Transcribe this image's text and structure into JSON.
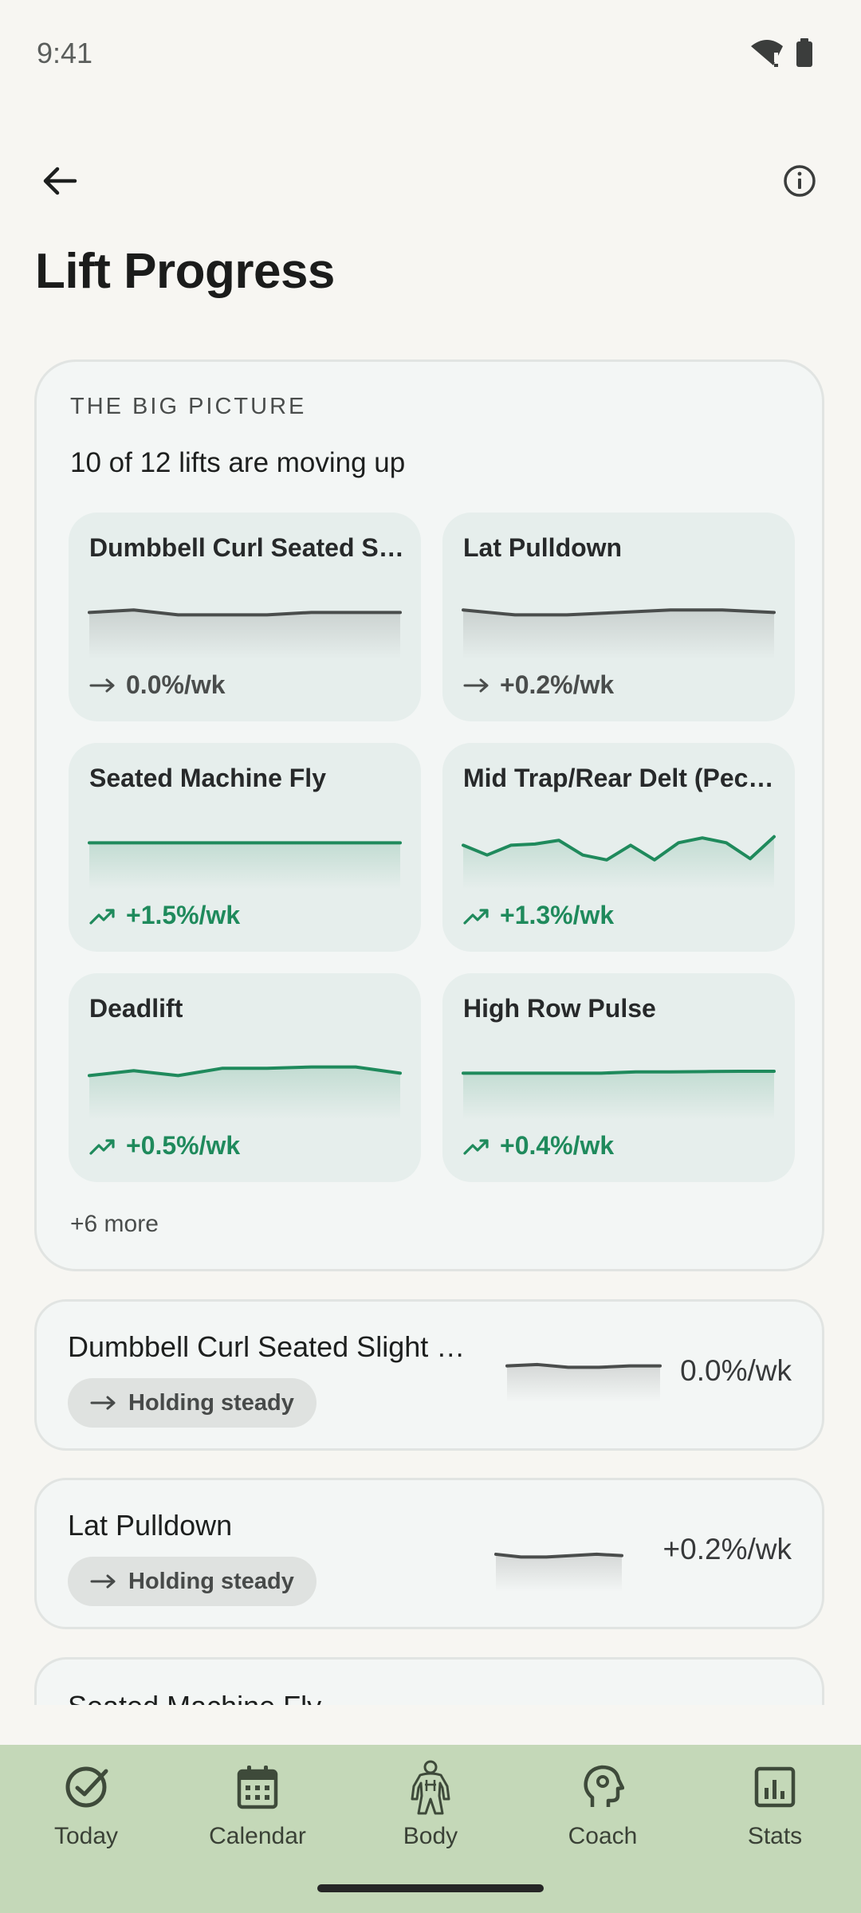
{
  "status": {
    "time": "9:41"
  },
  "header": {
    "title": "Lift Progress",
    "back_icon": "arrow-left-icon",
    "info_icon": "info-icon"
  },
  "overview": {
    "eyebrow": "THE BIG PICTURE",
    "summary": "10 of 12 lifts are moving up",
    "more": "+6 more",
    "lifts": [
      {
        "name": "Dumbbell Curl Seated Slight Recline",
        "rate": "0.0%/wk",
        "trend": "flat",
        "spark": [
          50,
          52,
          48,
          48,
          48,
          50,
          50,
          50
        ]
      },
      {
        "name": "Lat Pulldown",
        "rate": "+0.2%/wk",
        "trend": "flat",
        "spark": [
          52,
          48,
          48,
          50,
          52,
          52,
          50
        ]
      },
      {
        "name": "Seated Machine Fly",
        "rate": "+1.5%/wk",
        "trend": "up",
        "spark": [
          50,
          50,
          50,
          50,
          50,
          50
        ]
      },
      {
        "name": "Mid Trap/Rear Delt (Pec Deck)",
        "rate": "+1.3%/wk",
        "trend": "up",
        "spark": [
          48,
          40,
          48,
          49,
          52,
          40,
          36,
          48,
          36,
          50,
          54,
          50,
          37,
          55
        ]
      },
      {
        "name": "Deadlift",
        "rate": "+0.5%/wk",
        "trend": "up",
        "spark": [
          48,
          52,
          48,
          54,
          54,
          55,
          55,
          50
        ]
      },
      {
        "name": "High Row Pulse",
        "rate": "+0.4%/wk",
        "trend": "up",
        "spark": [
          50,
          50,
          50,
          50,
          50,
          51,
          51,
          51.3,
          51.5,
          51.5
        ]
      }
    ]
  },
  "list": [
    {
      "name": "Dumbbell Curl Seated Slight Recline",
      "status": "Holding steady",
      "rate": "0.0%/wk",
      "spark": [
        50,
        52,
        48,
        48,
        50,
        50
      ]
    },
    {
      "name": "Lat Pulldown",
      "status": "Holding steady",
      "rate": "+0.2%/wk",
      "spark": [
        52,
        48,
        48,
        50,
        52,
        50
      ]
    },
    {
      "name": "Seated Machine Fly"
    }
  ],
  "nav": {
    "items": [
      {
        "label": "Today",
        "icon": "check-circle-icon"
      },
      {
        "label": "Calendar",
        "icon": "calendar-icon"
      },
      {
        "label": "Body",
        "icon": "body-muscle-icon"
      },
      {
        "label": "Coach",
        "icon": "coach-head-icon"
      },
      {
        "label": "Stats",
        "icon": "stats-chart-icon"
      }
    ]
  },
  "colors": {
    "up": "#1f8a5c",
    "flat": "#4a4d4c",
    "nav_bg": "#c4d8b8"
  }
}
